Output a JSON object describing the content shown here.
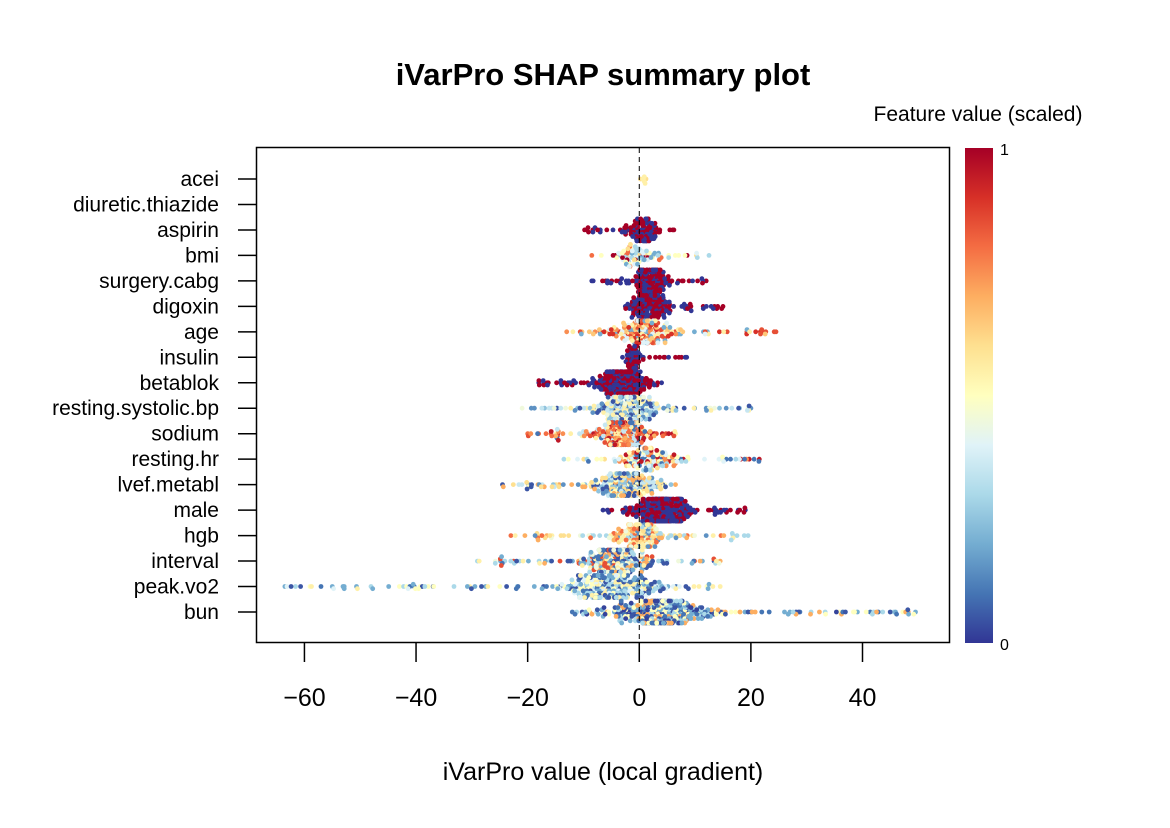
{
  "chart_data": {
    "type": "scatter",
    "subtype": "beeswarm",
    "title": "iVarPro SHAP summary plot",
    "xlabel": "iVarPro value (local gradient)",
    "ylabel": "",
    "xlim": [
      -68.5,
      55.5
    ],
    "xticks": [
      -60,
      -40,
      -20,
      0,
      20,
      40
    ],
    "xtick_labels": [
      "−60",
      "−40",
      "−20",
      "0",
      "20",
      "40"
    ],
    "reference_line": {
      "x": 0,
      "style": "dashed"
    },
    "grid": false,
    "legend": {
      "title": "Feature value (scaled)",
      "placement": "right",
      "min_label": "0",
      "max_label": "1",
      "colormap": [
        "#313695",
        "#4575b4",
        "#74add1",
        "#abd9e9",
        "#e0f3f8",
        "#ffffbf",
        "#fee090",
        "#fdae61",
        "#f46d43",
        "#d73027",
        "#a50026"
      ]
    },
    "features": [
      {
        "name": "acei",
        "min": 0.2,
        "max": 1.2,
        "n": 4,
        "spread": 0.6,
        "center": 0.6,
        "color_values": [
          0.55,
          0.6
        ]
      },
      {
        "name": "diuretic.thiazide",
        "min": 0,
        "max": 0,
        "n": 0,
        "spread": 0,
        "center": 0,
        "color_values": []
      },
      {
        "name": "aspirin",
        "min": -9.8,
        "max": 6.2,
        "n": 120,
        "spread": 2.5,
        "center": 0.5,
        "color_values": [
          0,
          1
        ]
      },
      {
        "name": "bmi",
        "min": -8.5,
        "max": 12.5,
        "n": 90,
        "spread": 3,
        "center": -0.5,
        "color_values": [
          0.2,
          0.3,
          0.4,
          0.5,
          0.6,
          0.8,
          1.0
        ]
      },
      {
        "name": "surgery.cabg",
        "min": -8.5,
        "max": 12,
        "n": 160,
        "spread": 3,
        "center": 2,
        "color_values": [
          0,
          1
        ]
      },
      {
        "name": "digoxin",
        "min": -2.5,
        "max": 15,
        "n": 180,
        "spread": 3,
        "center": 2,
        "color_values": [
          0,
          1
        ]
      },
      {
        "name": "age",
        "min": -13,
        "max": 24.5,
        "n": 220,
        "spread": 5,
        "center": 1,
        "color_values": [
          0.2,
          0.4,
          0.55,
          0.65,
          0.75,
          0.85,
          0.9
        ]
      },
      {
        "name": "insulin",
        "min": -3,
        "max": 8.5,
        "n": 60,
        "spread": 1.2,
        "center": -1,
        "color_values": [
          0,
          1
        ]
      },
      {
        "name": "betablok",
        "min": -18,
        "max": 4,
        "n": 320,
        "spread": 3.5,
        "center": -3,
        "color_values": [
          0,
          1
        ]
      },
      {
        "name": "resting.systolic.bp",
        "min": -21,
        "max": 20,
        "n": 260,
        "spread": 5,
        "center": -1.5,
        "color_values": [
          0.05,
          0.15,
          0.25,
          0.35,
          0.45,
          0.55
        ]
      },
      {
        "name": "sodium",
        "min": -20,
        "max": 6.5,
        "n": 260,
        "spread": 4,
        "center": -3,
        "color_values": [
          0.1,
          0.35,
          0.55,
          0.7,
          0.75,
          0.8,
          0.85,
          0.95
        ]
      },
      {
        "name": "resting.hr",
        "min": -13.5,
        "max": 21.5,
        "n": 160,
        "spread": 4.5,
        "center": 2,
        "color_values": [
          0.1,
          0.3,
          0.4,
          0.5,
          0.6,
          0.75,
          0.95
        ]
      },
      {
        "name": "lvef.metabl",
        "min": -24.5,
        "max": 6.5,
        "n": 260,
        "spread": 4.5,
        "center": -2.5,
        "color_values": [
          0.05,
          0.15,
          0.25,
          0.35,
          0.5,
          0.6,
          0.7
        ]
      },
      {
        "name": "male",
        "min": -6.5,
        "max": 19,
        "n": 320,
        "spread": 3.5,
        "center": 4.5,
        "color_values": [
          0,
          1
        ]
      },
      {
        "name": "hgb",
        "min": -23,
        "max": 19.5,
        "n": 200,
        "spread": 4,
        "center": 0,
        "color_values": [
          0.15,
          0.3,
          0.45,
          0.55,
          0.6,
          0.7,
          0.8
        ]
      },
      {
        "name": "interval",
        "min": -29,
        "max": 14.5,
        "n": 320,
        "spread": 5,
        "center": -4,
        "color_values": [
          0.05,
          0.1,
          0.2,
          0.3,
          0.45,
          0.55,
          0.7,
          0.85
        ]
      },
      {
        "name": "peak.vo2",
        "min": -63.5,
        "max": 14.5,
        "n": 380,
        "spread": 7,
        "center": -5,
        "color_values": [
          0.05,
          0.1,
          0.2,
          0.3,
          0.4,
          0.5,
          0.55
        ]
      },
      {
        "name": "bun",
        "min": -12,
        "max": 49.5,
        "n": 420,
        "spread": 7,
        "center": 4,
        "color_values": [
          0.02,
          0.05,
          0.1,
          0.2,
          0.3,
          0.5,
          0.7
        ]
      }
    ]
  }
}
